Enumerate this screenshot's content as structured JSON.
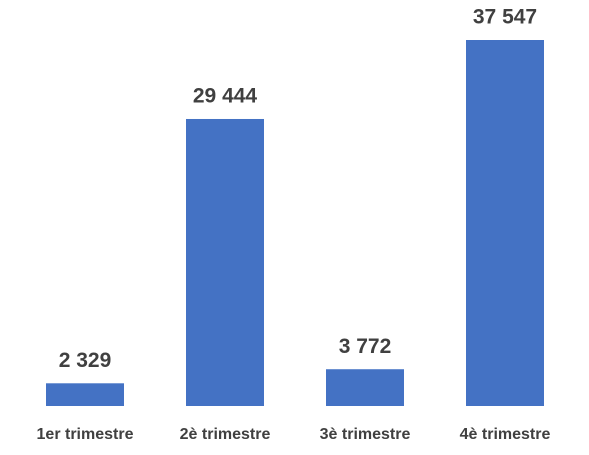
{
  "chart_data": {
    "type": "bar",
    "categories": [
      "1er trimestre",
      "2è trimestre",
      "3è trimestre",
      "4è trimestre"
    ],
    "values": [
      2329,
      29444,
      3772,
      37547
    ],
    "value_labels": [
      "2 329",
      "29 444",
      "3 772",
      "37 547"
    ],
    "color": "#4472c4"
  }
}
